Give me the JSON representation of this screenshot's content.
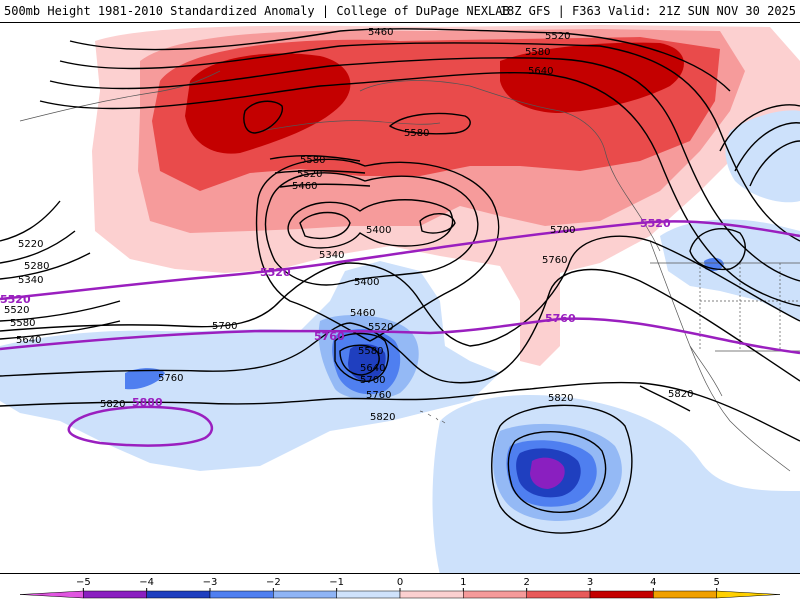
{
  "header": {
    "title_left": "500mb Height 1981-2010 Standardized Anomaly | College of DuPage NEXLAB",
    "title_right": "18Z GFS | F363 Valid: 21Z SUN NOV 30 2025"
  },
  "contour_labels": {
    "c5460_top": "5460",
    "c5520_top": "5520",
    "c5580_top": "5580",
    "c5640_top": "5640",
    "c5580_alaska": "5580",
    "c5580_mid": "5580",
    "c5520_mid": "5520",
    "c5460_mid": "5460",
    "c5400_low": "5400",
    "c5340_low": "5340",
    "c5400_b": "5400",
    "c5700_right": "5700",
    "c5760_right": "5760",
    "c5220_left": "5220",
    "c5280_left": "5280",
    "c5340_left": "5340",
    "c5580_left": "5580",
    "c5640_left": "5640",
    "c5520_left": "5520",
    "c5700_mid": "5700",
    "c5460_trough": "5460",
    "c5520_trough": "5520",
    "c5580_trough": "5580",
    "c5640_trough": "5640",
    "c5700_trough": "5700",
    "c5760_trough": "5760",
    "c5760_west": "5760",
    "c5820_west": "5820",
    "c5820_mid": "5820",
    "c5820_south": "5820",
    "c5820_east": "5820"
  },
  "climo_labels": {
    "p5520_left": "5520",
    "p5520_mid": "5520",
    "p5520_right": "5520",
    "p5760_left": "5760",
    "p5760_right": "5760",
    "p5880": "5880"
  },
  "legend": {
    "ticks": [
      "−5",
      "−4",
      "−3",
      "−2",
      "−1",
      "0",
      "1",
      "2",
      "3",
      "4",
      "5"
    ],
    "colors": [
      "#e055e0",
      "#8a1fc0",
      "#1f3fbf",
      "#4f7ff0",
      "#8fb4f5",
      "#cfe2fb",
      "#fbd0d0",
      "#f59a9a",
      "#e85a5a",
      "#c40000",
      "#f0a000",
      "#ffd000"
    ]
  },
  "colors": {
    "pos1": "#fcd0d0",
    "pos2": "#f69b9b",
    "pos3": "#e94b4b",
    "pos4": "#c40000",
    "neg1": "#cde1fb",
    "neg2": "#94b9f5",
    "neg3": "#4f7ff0",
    "neg4": "#1f3fbf",
    "neg5": "#8a1fc0",
    "climo": "#9a1fbf"
  }
}
